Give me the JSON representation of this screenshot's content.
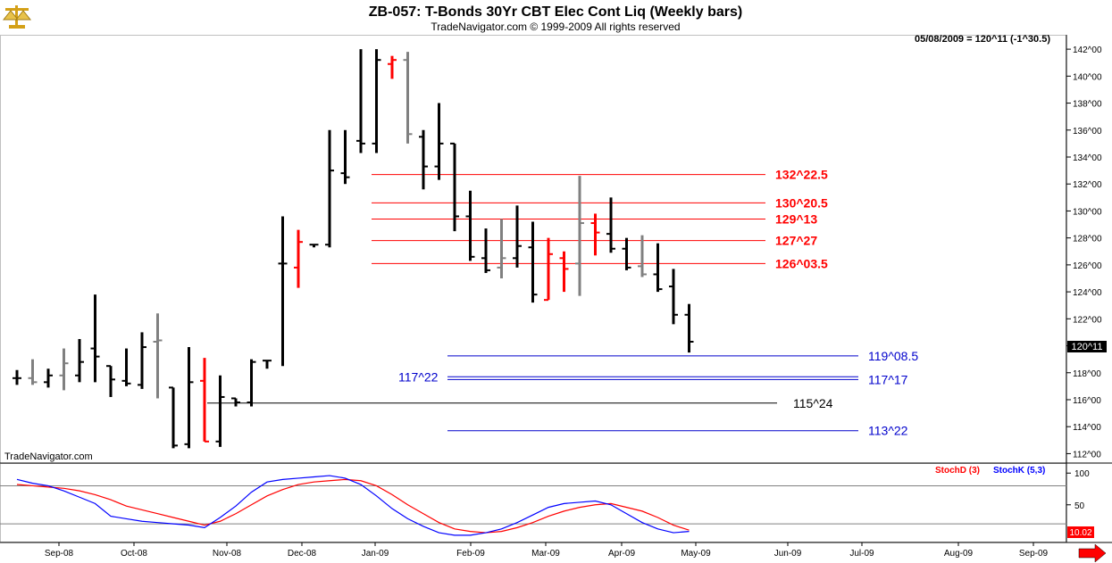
{
  "header": {
    "title": "ZB-057:  T-Bonds 30Yr CBT Elec Cont Liq  (Weekly bars)",
    "subtitle": "TradeNavigator.com © 1999-2009 All rights reserved",
    "readout": "05/08/2009 = 120^11 (-1^30.5)",
    "watermark": "TradeNavigator.com",
    "logo_icon": "scales-icon",
    "last_price_label": "120^11",
    "stoch_value_label": "10.02",
    "scroll_icon": "arrow-right-icon"
  },
  "colors": {
    "up": "#000000",
    "neutral": "#808080",
    "down": "#ff0000",
    "red_level": "#ff0000",
    "blue_level": "#0000cc",
    "black_level": "#000000",
    "stochD": "#ff0000",
    "stochK": "#0000ff"
  },
  "chart_data": [
    {
      "type": "ohlc",
      "title": "ZB-057:  T-Bonds 30Yr CBT Elec Cont Liq  (Weekly bars)",
      "ylim": [
        111.3,
        143.0
      ],
      "y_ticks": [
        112,
        114,
        116,
        118,
        120,
        122,
        124,
        126,
        128,
        130,
        132,
        134,
        136,
        138,
        140,
        142
      ],
      "y_tick_labels": [
        "112^00",
        "114^00",
        "116^00",
        "118^00",
        "120^00",
        "122^00",
        "124^00",
        "126^00",
        "128^00",
        "130^00",
        "132^00",
        "134^00",
        "136^00",
        "138^00",
        "140^00",
        "142^00"
      ],
      "x_ticks": [
        "Sep-08",
        "Oct-08",
        "Nov-08",
        "Dec-08",
        "Jan-09",
        "Feb-09",
        "Mar-09",
        "Apr-09",
        "May-09",
        "Jun-09",
        "Jul-09",
        "Aug-09",
        "Sep-09"
      ],
      "bars": [
        {
          "o": 117.6,
          "h": 118.2,
          "l": 117.1,
          "c": 117.6,
          "color": "up"
        },
        {
          "o": 117.6,
          "h": 119.0,
          "l": 117.1,
          "c": 117.3,
          "color": "neutral"
        },
        {
          "o": 117.3,
          "h": 118.3,
          "l": 116.9,
          "c": 117.8,
          "color": "up"
        },
        {
          "o": 117.8,
          "h": 119.8,
          "l": 116.7,
          "c": 118.7,
          "color": "neutral"
        },
        {
          "o": 117.8,
          "h": 120.5,
          "l": 117.3,
          "c": 118.8,
          "color": "up"
        },
        {
          "o": 119.8,
          "h": 123.8,
          "l": 117.3,
          "c": 119.2,
          "color": "up"
        },
        {
          "o": 118.5,
          "h": 118.5,
          "l": 116.2,
          "c": 117.5,
          "color": "up"
        },
        {
          "o": 117.4,
          "h": 119.8,
          "l": 117.0,
          "c": 117.2,
          "color": "up"
        },
        {
          "o": 117.1,
          "h": 121.0,
          "l": 116.8,
          "c": 119.9,
          "color": "up"
        },
        {
          "o": 120.3,
          "h": 122.4,
          "l": 116.1,
          "c": 120.4,
          "color": "neutral"
        },
        {
          "o": 116.9,
          "h": 116.9,
          "l": 112.4,
          "c": 112.6,
          "color": "up"
        },
        {
          "o": 112.7,
          "h": 119.9,
          "l": 112.4,
          "c": 117.3,
          "color": "up"
        },
        {
          "o": 117.4,
          "h": 119.1,
          "l": 112.9,
          "c": 112.9,
          "color": "down"
        },
        {
          "o": 112.9,
          "h": 117.8,
          "l": 112.5,
          "c": 116.2,
          "color": "up"
        },
        {
          "o": 116.1,
          "h": 116.1,
          "l": 115.5,
          "c": 115.8,
          "color": "up"
        },
        {
          "o": 115.8,
          "h": 119.0,
          "l": 115.5,
          "c": 118.8,
          "color": "up"
        },
        {
          "o": 118.9,
          "h": 118.9,
          "l": 118.3,
          "c": 118.9,
          "color": "up"
        },
        {
          "o": 126.1,
          "h": 129.6,
          "l": 118.5,
          "c": 126.1,
          "color": "up"
        },
        {
          "o": 125.8,
          "h": 128.6,
          "l": 124.3,
          "c": 127.7,
          "color": "down"
        },
        {
          "o": 127.5,
          "h": 127.5,
          "l": 127.3,
          "c": 127.5,
          "color": "up"
        },
        {
          "o": 127.5,
          "h": 136.0,
          "l": 127.3,
          "c": 133.0,
          "color": "up"
        },
        {
          "o": 132.8,
          "h": 136.0,
          "l": 132.0,
          "c": 132.5,
          "color": "up"
        },
        {
          "o": 135.2,
          "h": 142.0,
          "l": 134.3,
          "c": 135.0,
          "color": "up"
        },
        {
          "o": 135.0,
          "h": 142.0,
          "l": 134.3,
          "c": 141.2,
          "color": "up"
        },
        {
          "o": 140.9,
          "h": 141.5,
          "l": 139.8,
          "c": 141.2,
          "color": "down"
        },
        {
          "o": 141.2,
          "h": 141.8,
          "l": 135.0,
          "c": 135.7,
          "color": "neutral"
        },
        {
          "o": 135.5,
          "h": 136.0,
          "l": 131.6,
          "c": 133.3,
          "color": "up"
        },
        {
          "o": 133.3,
          "h": 138.0,
          "l": 132.3,
          "c": 135.0,
          "color": "up"
        },
        {
          "o": 135.0,
          "h": 135.0,
          "l": 128.5,
          "c": 129.6,
          "color": "up"
        },
        {
          "o": 129.6,
          "h": 131.5,
          "l": 126.3,
          "c": 126.6,
          "color": "up"
        },
        {
          "o": 126.5,
          "h": 128.7,
          "l": 125.4,
          "c": 125.6,
          "color": "up"
        },
        {
          "o": 125.8,
          "h": 129.4,
          "l": 125.0,
          "c": 126.5,
          "color": "neutral"
        },
        {
          "o": 126.5,
          "h": 130.4,
          "l": 125.8,
          "c": 127.4,
          "color": "up"
        },
        {
          "o": 127.3,
          "h": 129.2,
          "l": 123.2,
          "c": 123.8,
          "color": "up"
        },
        {
          "o": 123.4,
          "h": 128.0,
          "l": 123.4,
          "c": 126.8,
          "color": "down"
        },
        {
          "o": 126.5,
          "h": 127.0,
          "l": 124.0,
          "c": 125.7,
          "color": "down"
        },
        {
          "o": 126.1,
          "h": 132.6,
          "l": 123.7,
          "c": 129.1,
          "color": "neutral"
        },
        {
          "o": 129.1,
          "h": 129.8,
          "l": 126.7,
          "c": 128.4,
          "color": "down"
        },
        {
          "o": 128.3,
          "h": 131.0,
          "l": 126.9,
          "c": 127.2,
          "color": "up"
        },
        {
          "o": 127.2,
          "h": 128.0,
          "l": 125.6,
          "c": 125.8,
          "color": "up"
        },
        {
          "o": 125.9,
          "h": 128.2,
          "l": 125.1,
          "c": 125.3,
          "color": "neutral"
        },
        {
          "o": 125.3,
          "h": 127.6,
          "l": 124.0,
          "c": 124.2,
          "color": "up"
        },
        {
          "o": 124.4,
          "h": 125.7,
          "l": 121.6,
          "c": 122.3,
          "color": "up"
        },
        {
          "o": 122.3,
          "h": 123.1,
          "l": 119.5,
          "c": 120.3,
          "color": "up"
        }
      ],
      "levels": [
        {
          "value": 132.7,
          "label": "132^22.5",
          "color": "red_level",
          "label_pos": "right"
        },
        {
          "value": 130.6,
          "label": "130^20.5",
          "color": "red_level",
          "label_pos": "right"
        },
        {
          "value": 129.4,
          "label": "129^13",
          "color": "red_level",
          "label_pos": "right"
        },
        {
          "value": 127.8,
          "label": "127^27",
          "color": "red_level",
          "label_pos": "right"
        },
        {
          "value": 126.1,
          "label": "126^03.5",
          "color": "red_level",
          "label_pos": "right"
        },
        {
          "value": 119.25,
          "label": "119^08.5",
          "color": "blue_level",
          "label_pos": "right"
        },
        {
          "value": 117.7,
          "label": "117^22",
          "color": "blue_level",
          "label_pos": "left"
        },
        {
          "value": 117.5,
          "label": "117^17",
          "color": "blue_level",
          "label_pos": "right"
        },
        {
          "value": 115.75,
          "label": "115^24",
          "color": "black_level",
          "label_pos": "right"
        },
        {
          "value": 113.7,
          "label": "113^22",
          "color": "blue_level",
          "label_pos": "right"
        }
      ]
    },
    {
      "type": "line",
      "ylim": [
        -8,
        113
      ],
      "y_ticks": [
        100,
        50
      ],
      "y_tick_labels": [
        "100",
        "50"
      ],
      "ref_lines": [
        80,
        20
      ],
      "legend": [
        {
          "name": "StochD (3)",
          "color": "stochD"
        },
        {
          "name": "StochK (5,3)",
          "color": "stochK"
        }
      ],
      "series": [
        {
          "name": "StochD (3)",
          "color": "stochD",
          "values": [
            82,
            80,
            78,
            76,
            72,
            66,
            58,
            48,
            42,
            36,
            30,
            24,
            18,
            24,
            36,
            50,
            64,
            74,
            82,
            86,
            88,
            90,
            88,
            80,
            66,
            50,
            36,
            22,
            12,
            8,
            6,
            8,
            14,
            22,
            32,
            40,
            46,
            50,
            52,
            46,
            40,
            30,
            18,
            10
          ]
        },
        {
          "name": "StochK (5,3)",
          "color": "stochK",
          "values": [
            90,
            84,
            80,
            72,
            62,
            52,
            32,
            28,
            24,
            22,
            20,
            18,
            14,
            30,
            48,
            70,
            86,
            90,
            92,
            94,
            96,
            92,
            82,
            64,
            44,
            28,
            16,
            6,
            2,
            2,
            6,
            12,
            22,
            34,
            46,
            52,
            54,
            56,
            50,
            36,
            22,
            12,
            6,
            8
          ]
        }
      ]
    }
  ]
}
